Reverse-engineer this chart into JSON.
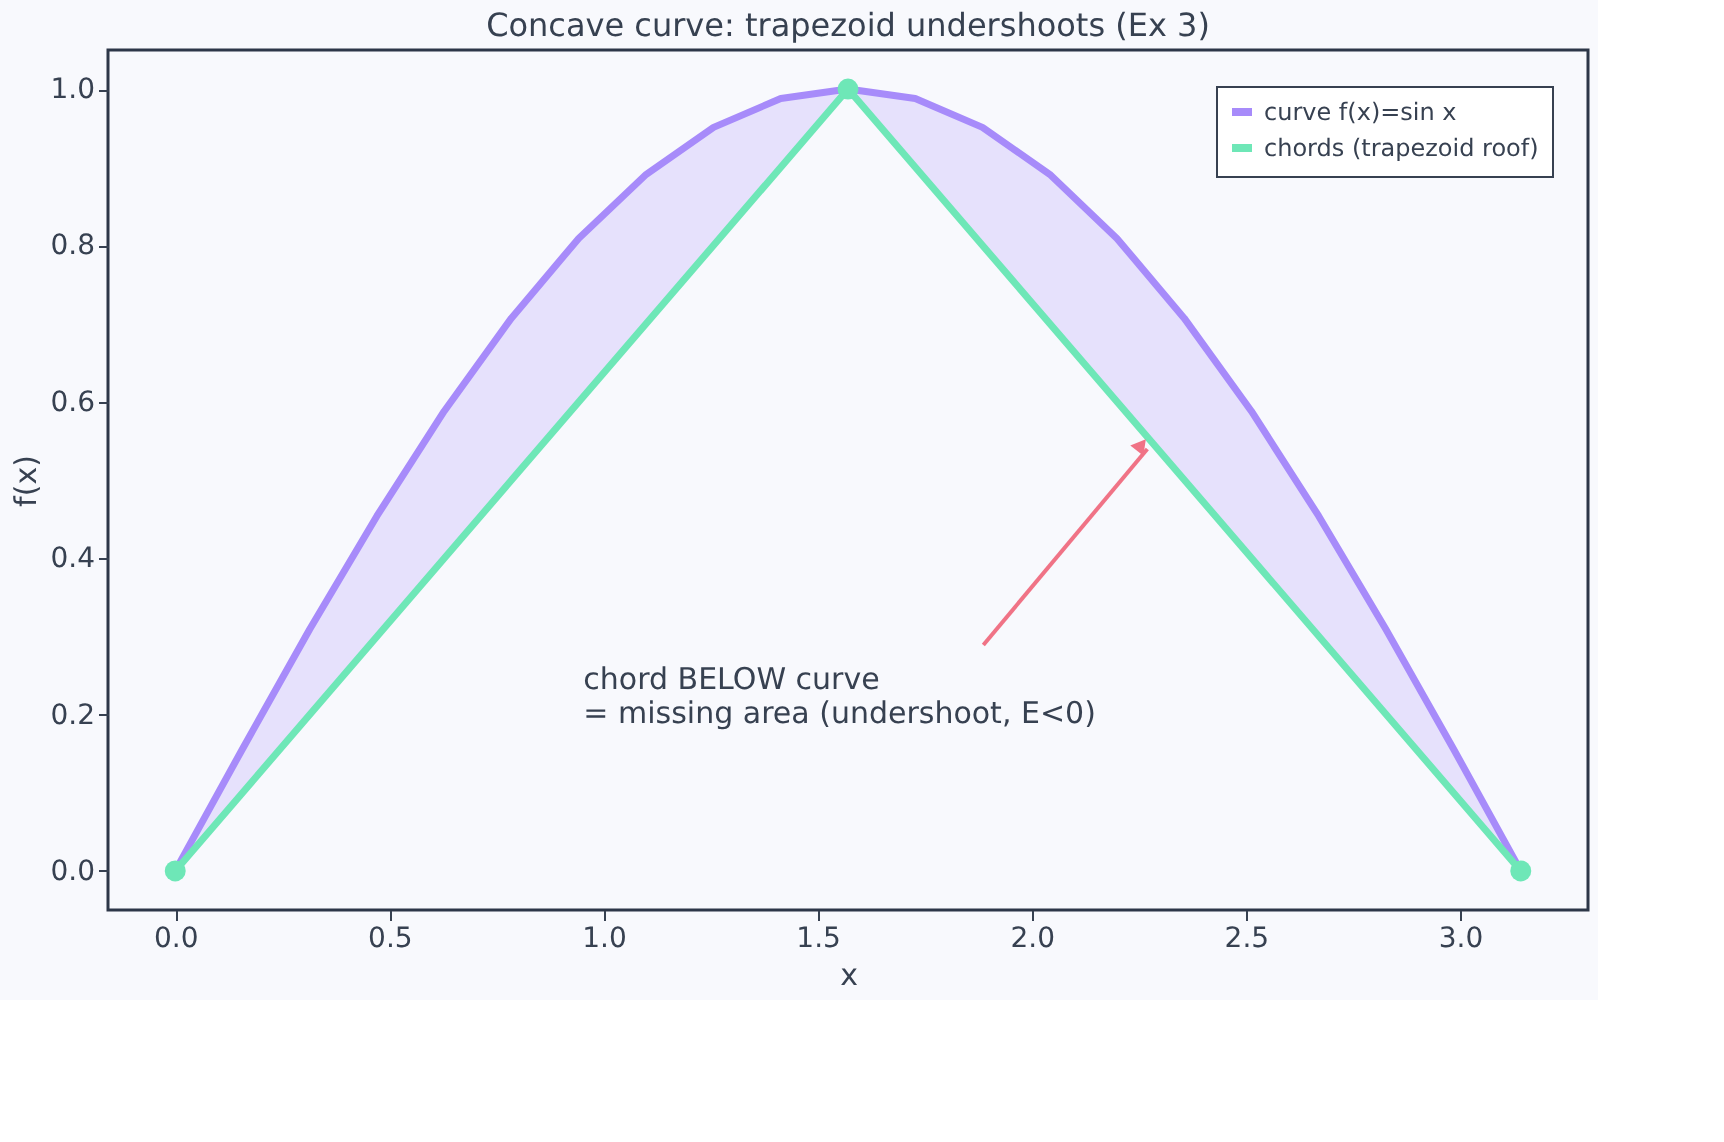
{
  "chart_data": {
    "type": "line",
    "title": "Concave curve: trapezoid undershoots (Ex 3)",
    "xlabel": "x",
    "ylabel": "f(x)",
    "series": [
      {
        "name": "curve f(x)=sin x",
        "color": "#a78bfa",
        "x": [
          0,
          0.157,
          0.314,
          0.471,
          0.628,
          0.785,
          0.942,
          1.1,
          1.257,
          1.414,
          1.571,
          1.728,
          1.885,
          2.042,
          2.199,
          2.356,
          2.513,
          2.67,
          2.827,
          2.985,
          3.142
        ],
        "values": [
          0,
          0.156,
          0.309,
          0.454,
          0.588,
          0.707,
          0.809,
          0.891,
          0.951,
          0.988,
          1,
          0.988,
          0.951,
          0.891,
          0.809,
          0.707,
          0.588,
          0.454,
          0.309,
          0.156,
          0
        ],
        "lower": [
          0,
          0.1,
          0.2,
          0.3,
          0.4,
          0.5,
          0.6,
          0.7,
          0.8,
          0.9,
          1,
          0.9,
          0.8,
          0.7,
          0.6,
          0.5,
          0.4,
          0.3,
          0.2,
          0.1,
          0
        ],
        "upper": [
          0,
          0.156,
          0.309,
          0.454,
          0.588,
          0.707,
          0.809,
          0.891,
          0.951,
          0.988,
          1,
          0.988,
          0.951,
          0.891,
          0.809,
          0.707,
          0.588,
          0.454,
          0.309,
          0.156,
          0
        ]
      },
      {
        "name": "chords (trapezoid roof)",
        "color": "#6ee7b7",
        "marker": "circle",
        "x": [
          0,
          1.571,
          3.142
        ],
        "values": [
          0,
          1,
          0
        ]
      }
    ],
    "annotations": [
      {
        "text": "chord BELOW curve\n= missing area (undershoot, E<0)",
        "x": 2.27,
        "y": 0.555
      }
    ],
    "xlim": [
      -0.157,
      3.299
    ],
    "ylim": [
      -0.05,
      1.05
    ],
    "xticks": [
      {
        "value": 0,
        "label": "0.0"
      },
      {
        "value": 0.5,
        "label": "0.5"
      },
      {
        "value": 1,
        "label": "1.0"
      },
      {
        "value": 1.5,
        "label": "1.5"
      },
      {
        "value": 2,
        "label": "2.0"
      },
      {
        "value": 2.5,
        "label": "2.5"
      },
      {
        "value": 3,
        "label": "3.0"
      }
    ],
    "yticks": [
      {
        "value": 0,
        "label": "0.0"
      },
      {
        "value": 0.2,
        "label": "0.2"
      },
      {
        "value": 0.4,
        "label": "0.4"
      },
      {
        "value": 0.6,
        "label": "0.6"
      },
      {
        "value": 0.8,
        "label": "0.8"
      },
      {
        "value": 1,
        "label": "1.0"
      }
    ],
    "grid": false,
    "legend": "top right"
  }
}
